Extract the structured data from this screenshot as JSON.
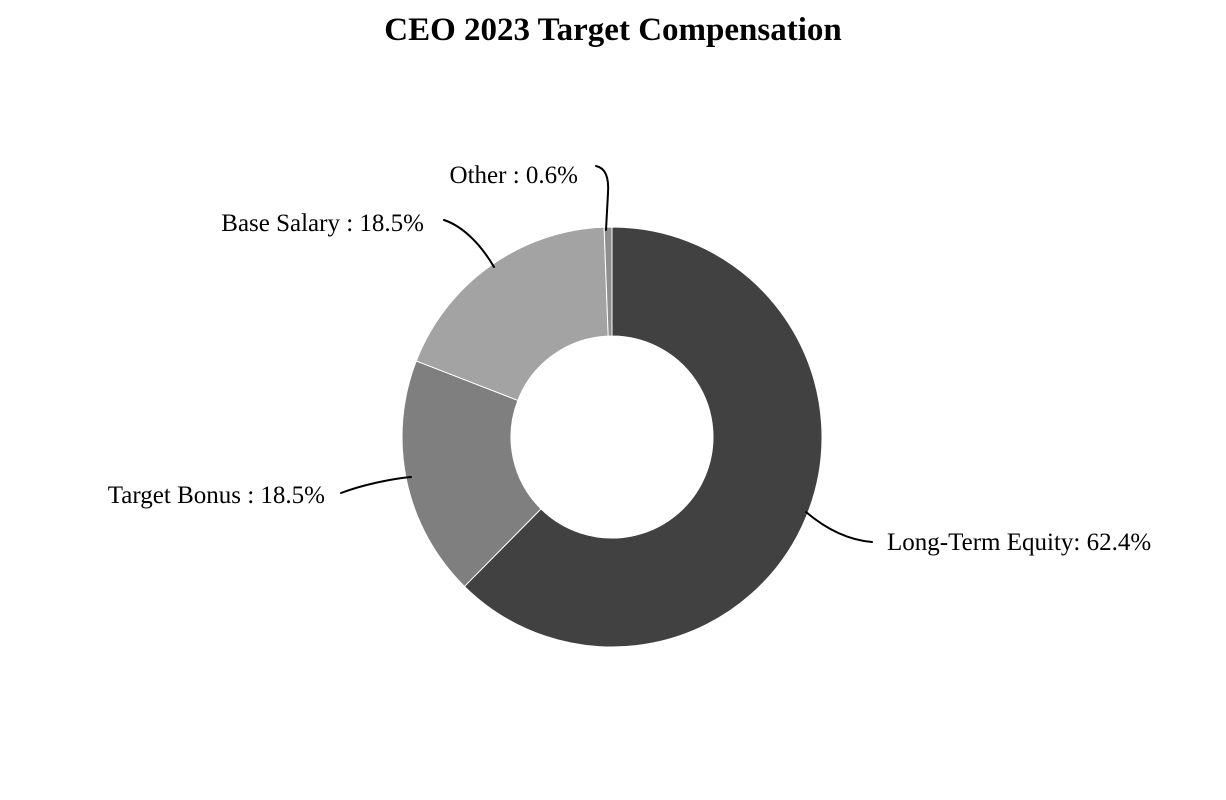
{
  "chart_data": {
    "type": "pie",
    "subtype": "donut",
    "title": "CEO 2023 Target Compensation",
    "start_angle_deg": 0,
    "direction": "clockwise",
    "donut_hole_ratio": 0.48,
    "legend": "none",
    "data_labels": "outside-with-leader-lines",
    "background_color": "#ffffff",
    "slices": [
      {
        "label": "Long-Term Equity",
        "value": 62.4,
        "color": "#414141",
        "callout": "Long-Term Equity: 62.4%"
      },
      {
        "label": "Target Bonus",
        "value": 18.5,
        "color": "#7f7f7f",
        "callout": "Target Bonus : 18.5%"
      },
      {
        "label": "Base Salary",
        "value": 18.5,
        "color": "#a3a3a3",
        "callout": "Base Salary : 18.5%"
      },
      {
        "label": "Other",
        "value": 0.6,
        "color": "#8f8f8f",
        "callout": "Other : 0.6%"
      }
    ]
  }
}
